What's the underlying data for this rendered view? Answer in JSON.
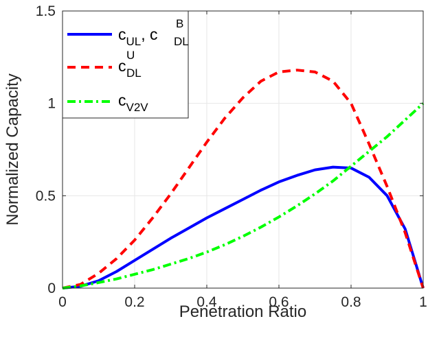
{
  "chart_data": {
    "type": "line",
    "xlabel": "Penetration Ratio",
    "ylabel": "Normalized Capacity",
    "xlim": [
      0,
      1
    ],
    "ylim": [
      0,
      1.5
    ],
    "xticks": [
      0,
      0.2,
      0.4,
      0.6,
      0.8,
      1
    ],
    "yticks": [
      0,
      0.5,
      1,
      1.5
    ],
    "xtick_labels": [
      "0",
      "0.2",
      "0.4",
      "0.6",
      "0.8",
      "1"
    ],
    "ytick_labels": [
      "0",
      "0.5",
      "1",
      "1.5"
    ],
    "grid": true,
    "legend_position": "top-left",
    "series": [
      {
        "name": "c_UL, c^B_DL",
        "legend": {
          "base1": "c",
          "sub1": "UL",
          "sep": ", ",
          "base2": "c",
          "sup2": "B",
          "sub2": "DL"
        },
        "color": "#0000ff",
        "style": "solid",
        "x": [
          0,
          0.05,
          0.1,
          0.15,
          0.2,
          0.25,
          0.3,
          0.35,
          0.4,
          0.45,
          0.5,
          0.55,
          0.6,
          0.65,
          0.7,
          0.75,
          0.8,
          0.85,
          0.9,
          0.95,
          1.0
        ],
        "y": [
          0,
          0.01,
          0.04,
          0.09,
          0.15,
          0.21,
          0.27,
          0.325,
          0.38,
          0.43,
          0.48,
          0.53,
          0.575,
          0.61,
          0.64,
          0.655,
          0.65,
          0.6,
          0.5,
          0.32,
          0
        ]
      },
      {
        "name": "c^U_DL",
        "legend": {
          "base": "c",
          "sup": "U",
          "sub": "DL"
        },
        "color": "#ff0000",
        "style": "dashed",
        "x": [
          0,
          0.05,
          0.1,
          0.15,
          0.2,
          0.25,
          0.3,
          0.35,
          0.4,
          0.45,
          0.5,
          0.55,
          0.6,
          0.65,
          0.7,
          0.75,
          0.8,
          0.85,
          0.9,
          0.95,
          1.0
        ],
        "y": [
          0,
          0.02,
          0.08,
          0.16,
          0.26,
          0.38,
          0.51,
          0.65,
          0.79,
          0.92,
          1.03,
          1.12,
          1.17,
          1.18,
          1.17,
          1.12,
          1.0,
          0.78,
          0.55,
          0.3,
          0
        ]
      },
      {
        "name": "c_V2V",
        "legend": {
          "base": "c",
          "sub": "V2V"
        },
        "color": "#00ff00",
        "style": "dashdot",
        "x": [
          0,
          0.05,
          0.1,
          0.15,
          0.2,
          0.25,
          0.3,
          0.35,
          0.4,
          0.45,
          0.5,
          0.55,
          0.6,
          0.65,
          0.7,
          0.75,
          0.8,
          0.85,
          0.9,
          0.95,
          1.0
        ],
        "y": [
          0,
          0.012,
          0.03,
          0.05,
          0.075,
          0.1,
          0.13,
          0.16,
          0.195,
          0.235,
          0.28,
          0.33,
          0.385,
          0.445,
          0.51,
          0.58,
          0.66,
          0.74,
          0.82,
          0.91,
          1.0
        ]
      }
    ]
  }
}
